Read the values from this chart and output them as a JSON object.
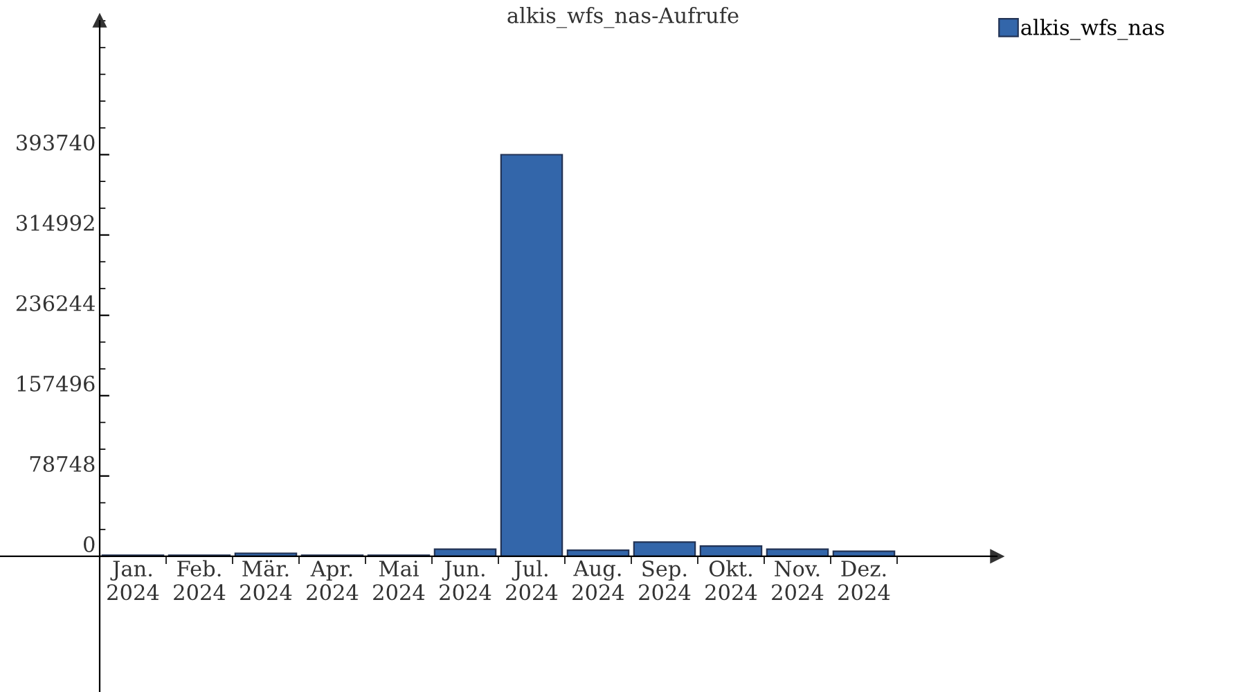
{
  "chart_data": {
    "type": "bar",
    "title": "alkis_wfs_nas-Aufrufe",
    "categories": [
      "Jan.\n2024",
      "Feb.\n2024",
      "Mär.\n2024",
      "Apr.\n2024",
      "Mai\n2024",
      "Jun.\n2024",
      "Jul.\n2024",
      "Aug.\n2024",
      "Sep.\n2024",
      "Okt.\n2024",
      "Nov.\n2024",
      "Dez.\n2024"
    ],
    "series": [
      {
        "name": "alkis_wfs_nas",
        "color": "#3366aa",
        "values": [
          1000,
          1000,
          3000,
          1000,
          1000,
          7000,
          393740,
          6000,
          14000,
          10000,
          7000,
          5000
        ]
      }
    ],
    "ylim": [
      -133000,
      525000
    ],
    "yticks": [
      0,
      78748,
      157496,
      236244,
      314992,
      393740
    ],
    "grid": false,
    "legend": "top right"
  }
}
